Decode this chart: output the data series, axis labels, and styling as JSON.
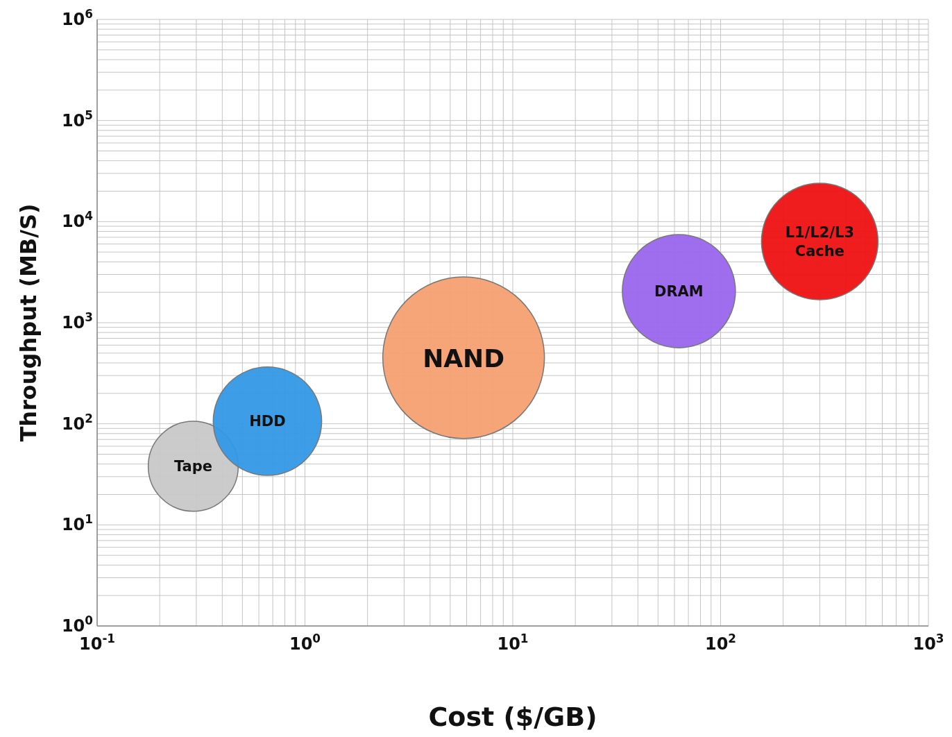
{
  "chart_data": {
    "type": "bubble",
    "xlabel": "Cost ($/GB)",
    "ylabel": "Throughput (MB/S)",
    "log": "xy",
    "grid": true,
    "legend": false,
    "xlim": [
      0.1,
      1000
    ],
    "ylim": [
      1,
      1000000
    ],
    "xticks": [
      {
        "value": 0.1,
        "label": "10$^{-1}$"
      },
      {
        "value": 1,
        "label": "10$^{0}$"
      },
      {
        "value": 10,
        "label": "10$^{1}$"
      },
      {
        "value": 100,
        "label": "10$^{2}$"
      },
      {
        "value": 1000,
        "label": "10$^{3}$"
      }
    ],
    "yticks": [
      {
        "value": 1,
        "label": "10$^{0}$"
      },
      {
        "value": 10,
        "label": "10$^{1}$"
      },
      {
        "value": 100,
        "label": "10$^{2}$"
      },
      {
        "value": 1000,
        "label": "10$^{3}$"
      },
      {
        "value": 10000,
        "label": "10$^{4}$"
      },
      {
        "value": 100000,
        "label": "10$^{5}$"
      },
      {
        "value": 1000000,
        "label": "10$^{6}$"
      }
    ],
    "series": [
      {
        "name": "Tape",
        "color": "#c8c8c8",
        "x": [
          0.29
        ],
        "values": [
          38
        ],
        "sizes": [
          0.31
        ]
      },
      {
        "name": "HDD",
        "color": "#3399e6",
        "x": [
          0.66
        ],
        "values": [
          106
        ],
        "sizes": [
          0.45
        ]
      },
      {
        "name": "NAND",
        "color": "#f4a070",
        "x": [
          5.8
        ],
        "values": [
          450
        ],
        "sizes": [
          1
        ]
      },
      {
        "name": "DRAM",
        "color": "#9966ee",
        "x": [
          63
        ],
        "values": [
          2050
        ],
        "sizes": [
          0.49
        ]
      },
      {
        "name": "L1/L2/L3 Cache",
        "color": "#ee1111",
        "x": [
          300
        ],
        "values": [
          6350
        ],
        "sizes": [
          0.52
        ]
      }
    ]
  }
}
